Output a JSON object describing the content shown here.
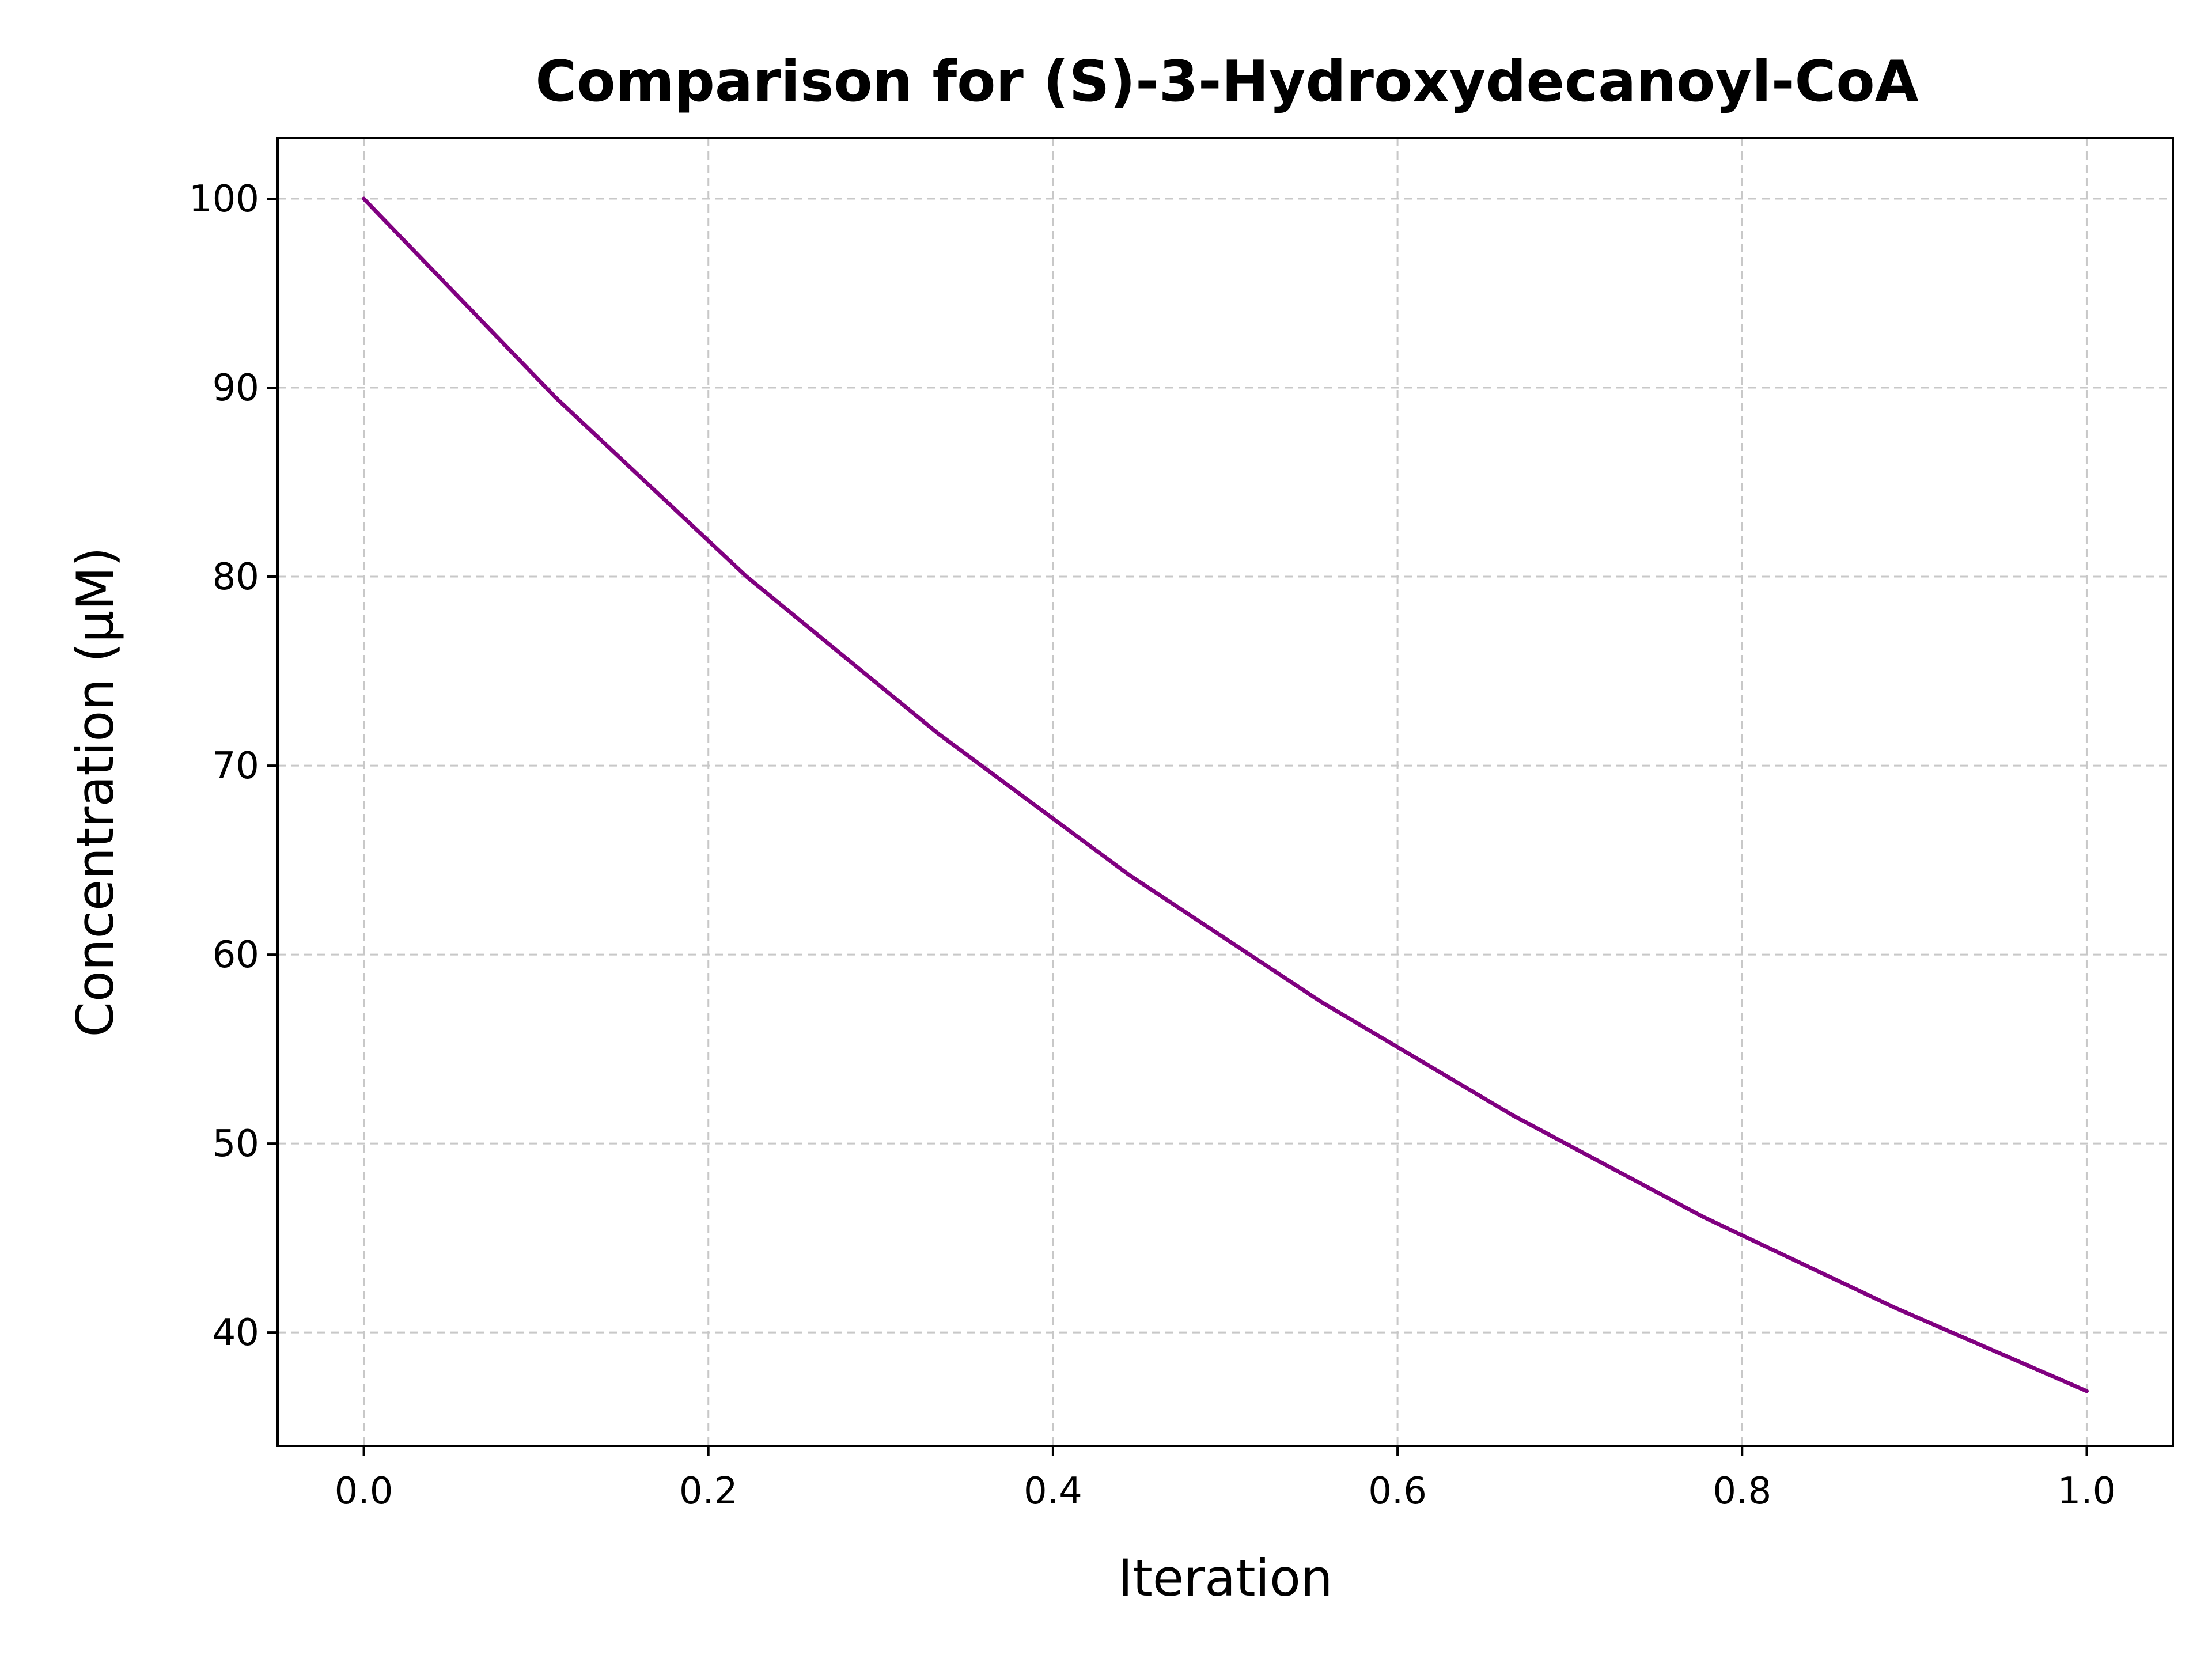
{
  "chart_data": {
    "type": "line",
    "title": "Comparison for (S)-3-Hydroxydecanoyl-CoA",
    "xlabel": "Iteration",
    "ylabel": "Concentration (μM)",
    "xlim": [
      -0.05,
      1.05
    ],
    "ylim": [
      34.0,
      103.2
    ],
    "xticks": [
      0.0,
      0.2,
      0.4,
      0.6,
      0.8,
      1.0
    ],
    "xtick_labels": [
      "0.0",
      "0.2",
      "0.4",
      "0.6",
      "0.8",
      "1.0"
    ],
    "yticks": [
      40,
      50,
      60,
      70,
      80,
      90,
      100
    ],
    "ytick_labels": [
      "40",
      "50",
      "60",
      "70",
      "80",
      "90",
      "100"
    ],
    "grid": true,
    "legend": false,
    "series": [
      {
        "color": "#800080",
        "x": [
          0.0,
          0.1111,
          0.2222,
          0.3333,
          0.4444,
          0.5556,
          0.6667,
          0.7778,
          0.8889,
          1.0
        ],
        "y": [
          100.0,
          89.5,
          80.0,
          71.7,
          64.2,
          57.5,
          51.5,
          46.1,
          41.3,
          36.9
        ]
      }
    ]
  }
}
